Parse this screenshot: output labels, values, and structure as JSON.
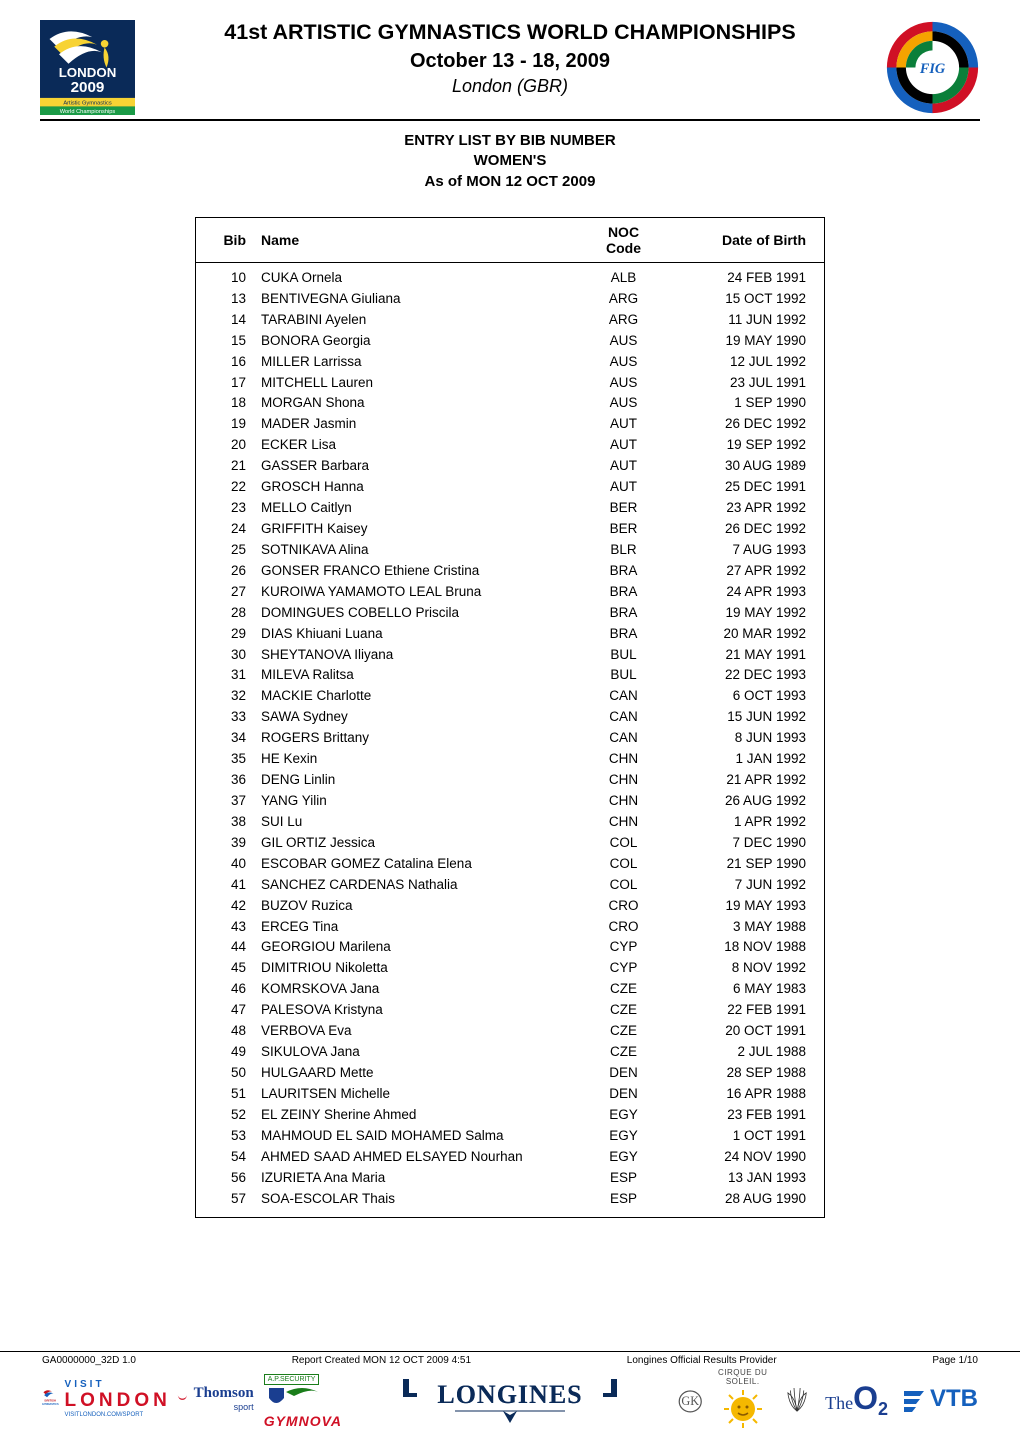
{
  "header": {
    "main_title": "41st ARTISTIC GYMNASTICS WORLD CHAMPIONSHIPS",
    "subtitle": "October 13 - 18, 2009",
    "location": "London (GBR)"
  },
  "section": {
    "line1": "ENTRY LIST BY BIB NUMBER",
    "line2": "WOMEN'S",
    "line3": "As of MON 12 OCT 2009"
  },
  "logos": {
    "left_bg": "#0a2a58",
    "left_accent": "#f7d334",
    "left_text_top": "LONDON",
    "left_text_mid": "2009",
    "left_sub1": "Artistic Gymnastics",
    "left_sub2": "World Championships",
    "right_stripes": [
      "#d01025",
      "#f5a300",
      "#0b7f3a",
      "#1560bd",
      "#1560bd"
    ]
  },
  "table": {
    "headers": {
      "bib": "Bib",
      "name": "Name",
      "noc_line1": "NOC",
      "noc_line2": "Code",
      "dob": "Date of Birth"
    },
    "rows": [
      {
        "bib": "10",
        "name": "CUKA Ornela",
        "noc": "ALB",
        "dob": "24 FEB 1991"
      },
      {
        "bib": "13",
        "name": "BENTIVEGNA Giuliana",
        "noc": "ARG",
        "dob": "15 OCT 1992"
      },
      {
        "bib": "14",
        "name": "TARABINI Ayelen",
        "noc": "ARG",
        "dob": "11 JUN 1992"
      },
      {
        "bib": "15",
        "name": "BONORA Georgia",
        "noc": "AUS",
        "dob": "19 MAY 1990"
      },
      {
        "bib": "16",
        "name": "MILLER Larrissa",
        "noc": "AUS",
        "dob": "12 JUL 1992"
      },
      {
        "bib": "17",
        "name": "MITCHELL Lauren",
        "noc": "AUS",
        "dob": "23 JUL 1991"
      },
      {
        "bib": "18",
        "name": "MORGAN Shona",
        "noc": "AUS",
        "dob": "1 SEP 1990"
      },
      {
        "bib": "19",
        "name": "MADER Jasmin",
        "noc": "AUT",
        "dob": "26 DEC 1992"
      },
      {
        "bib": "20",
        "name": "ECKER Lisa",
        "noc": "AUT",
        "dob": "19 SEP 1992"
      },
      {
        "bib": "21",
        "name": "GASSER Barbara",
        "noc": "AUT",
        "dob": "30 AUG 1989"
      },
      {
        "bib": "22",
        "name": "GROSCH Hanna",
        "noc": "AUT",
        "dob": "25 DEC 1991"
      },
      {
        "bib": "23",
        "name": "MELLO Caitlyn",
        "noc": "BER",
        "dob": "23 APR 1992"
      },
      {
        "bib": "24",
        "name": "GRIFFITH Kaisey",
        "noc": "BER",
        "dob": "26 DEC 1992"
      },
      {
        "bib": "25",
        "name": "SOTNIKAVA Alina",
        "noc": "BLR",
        "dob": "7 AUG 1993"
      },
      {
        "bib": "26",
        "name": "GONSER FRANCO Ethiene Cristina",
        "noc": "BRA",
        "dob": "27 APR 1992"
      },
      {
        "bib": "27",
        "name": "KUROIWA YAMAMOTO LEAL Bruna",
        "noc": "BRA",
        "dob": "24 APR 1993"
      },
      {
        "bib": "28",
        "name": "DOMINGUES COBELLO Priscila",
        "noc": "BRA",
        "dob": "19 MAY 1992"
      },
      {
        "bib": "29",
        "name": "DIAS Khiuani Luana",
        "noc": "BRA",
        "dob": "20 MAR 1992"
      },
      {
        "bib": "30",
        "name": "SHEYTANOVA Iliyana",
        "noc": "BUL",
        "dob": "21 MAY 1991"
      },
      {
        "bib": "31",
        "name": "MILEVA Ralitsa",
        "noc": "BUL",
        "dob": "22 DEC 1993"
      },
      {
        "bib": "32",
        "name": "MACKIE Charlotte",
        "noc": "CAN",
        "dob": "6 OCT 1993"
      },
      {
        "bib": "33",
        "name": "SAWA Sydney",
        "noc": "CAN",
        "dob": "15 JUN 1992"
      },
      {
        "bib": "34",
        "name": "ROGERS Brittany",
        "noc": "CAN",
        "dob": "8 JUN 1993"
      },
      {
        "bib": "35",
        "name": "HE Kexin",
        "noc": "CHN",
        "dob": "1 JAN 1992"
      },
      {
        "bib": "36",
        "name": "DENG Linlin",
        "noc": "CHN",
        "dob": "21 APR 1992"
      },
      {
        "bib": "37",
        "name": "YANG Yilin",
        "noc": "CHN",
        "dob": "26 AUG 1992"
      },
      {
        "bib": "38",
        "name": "SUI Lu",
        "noc": "CHN",
        "dob": "1 APR 1992"
      },
      {
        "bib": "39",
        "name": "GIL ORTIZ Jessica",
        "noc": "COL",
        "dob": "7 DEC 1990"
      },
      {
        "bib": "40",
        "name": "ESCOBAR GOMEZ Catalina Elena",
        "noc": "COL",
        "dob": "21 SEP 1990"
      },
      {
        "bib": "41",
        "name": "SANCHEZ CARDENAS Nathalia",
        "noc": "COL",
        "dob": "7 JUN 1992"
      },
      {
        "bib": "42",
        "name": "BUZOV Ruzica",
        "noc": "CRO",
        "dob": "19 MAY 1993"
      },
      {
        "bib": "43",
        "name": "ERCEG Tina",
        "noc": "CRO",
        "dob": "3 MAY 1988"
      },
      {
        "bib": "44",
        "name": "GEORGIOU Marilena",
        "noc": "CYP",
        "dob": "18 NOV 1988"
      },
      {
        "bib": "45",
        "name": "DIMITRIOU Nikoletta",
        "noc": "CYP",
        "dob": "8 NOV 1992"
      },
      {
        "bib": "46",
        "name": "KOMRSKOVA Jana",
        "noc": "CZE",
        "dob": "6 MAY 1983"
      },
      {
        "bib": "47",
        "name": "PALESOVA Kristyna",
        "noc": "CZE",
        "dob": "22 FEB 1991"
      },
      {
        "bib": "48",
        "name": "VERBOVA Eva",
        "noc": "CZE",
        "dob": "20 OCT 1991"
      },
      {
        "bib": "49",
        "name": "SIKULOVA Jana",
        "noc": "CZE",
        "dob": "2 JUL 1988"
      },
      {
        "bib": "50",
        "name": "HULGAARD Mette",
        "noc": "DEN",
        "dob": "28 SEP 1988"
      },
      {
        "bib": "51",
        "name": "LAURITSEN Michelle",
        "noc": "DEN",
        "dob": "16 APR 1988"
      },
      {
        "bib": "52",
        "name": "EL ZEINY Sherine Ahmed",
        "noc": "EGY",
        "dob": "23 FEB 1991"
      },
      {
        "bib": "53",
        "name": "MAHMOUD EL SAID MOHAMED Salma",
        "noc": "EGY",
        "dob": "1 OCT 1991"
      },
      {
        "bib": "54",
        "name": "AHMED SAAD AHMED ELSAYED Nourhan",
        "noc": "EGY",
        "dob": "24 NOV 1990"
      },
      {
        "bib": "56",
        "name": "IZURIETA Ana Maria",
        "noc": "ESP",
        "dob": "13 JAN 1993"
      },
      {
        "bib": "57",
        "name": "SOA-ESCOLAR Thais",
        "noc": "ESP",
        "dob": "28 AUG 1990"
      }
    ]
  },
  "footer": {
    "code": "GA0000000_32D 1.0",
    "report": "Report Created  MON 12 OCT 2009 4:51",
    "provider": "Longines Official Results Provider",
    "page": "Page 1/10",
    "cirque": "CIRQUE DU SOLEIL.",
    "sponsors": {
      "visit": "VISIT",
      "london": "LONDON",
      "visitlondon_sub": "VISITLONDON.COM/SPORT",
      "thomson": "Thomson",
      "thomson_sub": "sport",
      "gymnova": "GYMNOVA",
      "longines": "LONGINES",
      "the": "The",
      "o2": "O",
      "o2_sub": "2",
      "vtb": "VTB"
    },
    "colors": {
      "visit_blue": "#1560bd",
      "london_red": "#d01025",
      "thomson_blue": "#1a3e90",
      "security_green": "#1a7d1a",
      "gymnova_red": "#d01025",
      "longines_blue": "#0a2a58",
      "british_red": "#c1131e",
      "cirque_yellow": "#f5b800",
      "vtb_blue": "#1560bd",
      "vtb_red": "#d01025",
      "o2_blue": "#1a3e90"
    }
  }
}
